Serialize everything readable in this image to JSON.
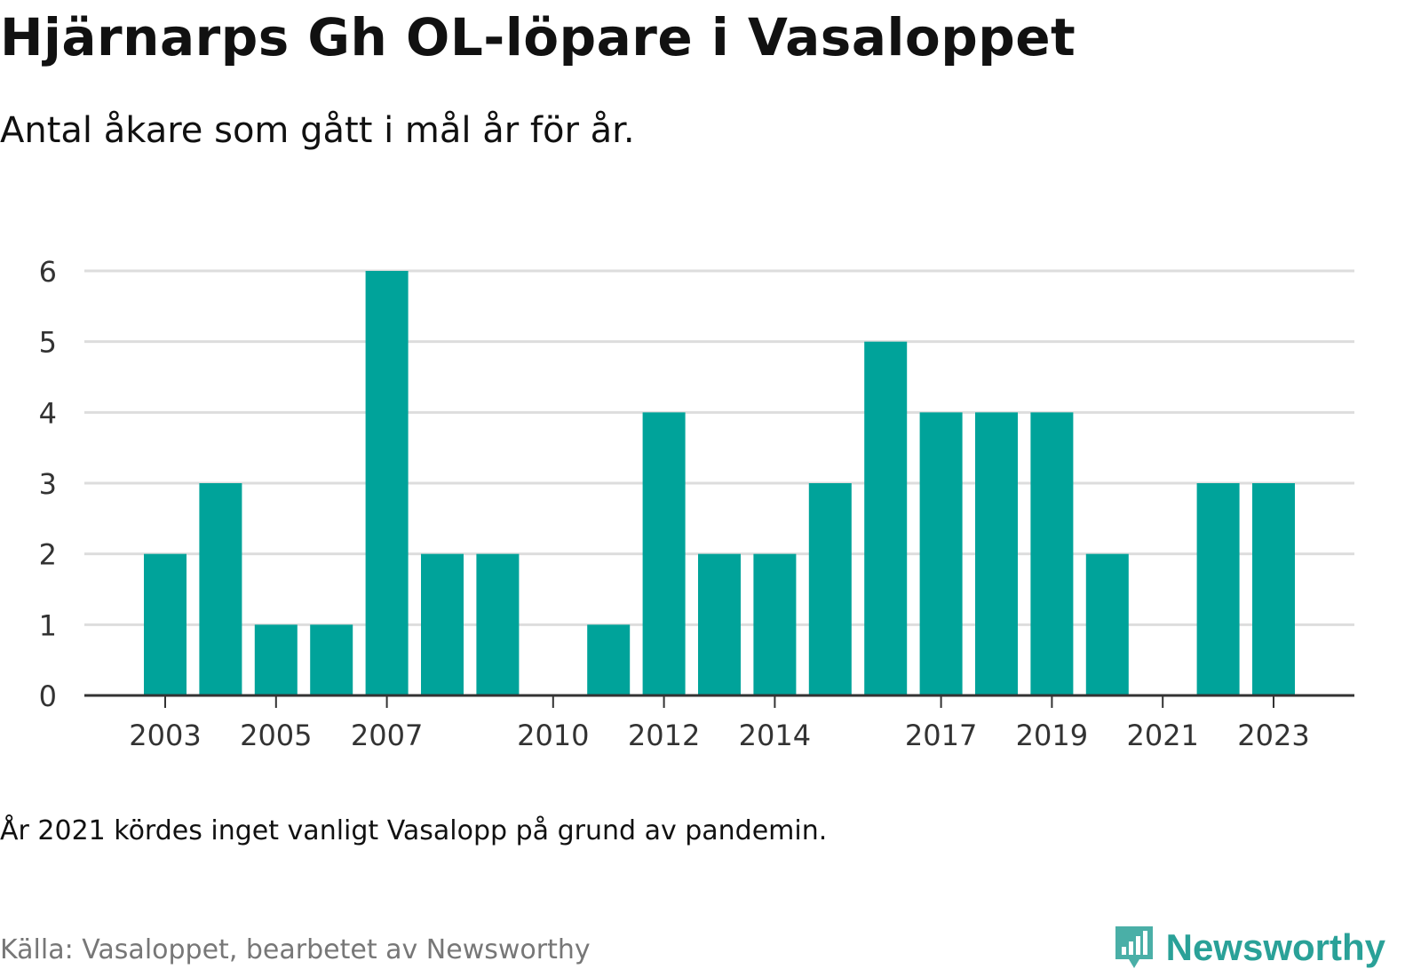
{
  "header": {
    "title": "Hjärnarps Gh OL-löpare i Vasaloppet",
    "subtitle": "Antal åkare som gått i mål år för år."
  },
  "footer": {
    "note": "År 2021 kördes inget vanligt Vasalopp på grund av pandemin.",
    "source": "Källa: Vasaloppet, bearbetet av Newsworthy",
    "brand": "Newsworthy",
    "brand_icon": "newsworthy-bar-chart-icon"
  },
  "colors": {
    "bar": "#00a39a",
    "grid": "#dddddd",
    "axis": "#333333",
    "brand": "#2aa198"
  },
  "chart_data": {
    "type": "bar",
    "categories": [
      "2003",
      "2004",
      "2005",
      "2006",
      "2007",
      "2008",
      "2009",
      "2010",
      "2011",
      "2012",
      "2013",
      "2014",
      "2015",
      "2016",
      "2017",
      "2018",
      "2019",
      "2020",
      "2021",
      "2022",
      "2023"
    ],
    "values": [
      2,
      3,
      1,
      1,
      6,
      2,
      2,
      0,
      1,
      4,
      2,
      2,
      3,
      5,
      4,
      4,
      4,
      2,
      0,
      3,
      3
    ],
    "x_tick_labels": [
      "2003",
      "2005",
      "2007",
      "2010",
      "2012",
      "2014",
      "2017",
      "2019",
      "2021",
      "2023"
    ],
    "y_ticks": [
      0,
      1,
      2,
      3,
      4,
      5,
      6
    ],
    "ylim": [
      0,
      6
    ],
    "grid": true,
    "xlabel": "",
    "ylabel": ""
  }
}
